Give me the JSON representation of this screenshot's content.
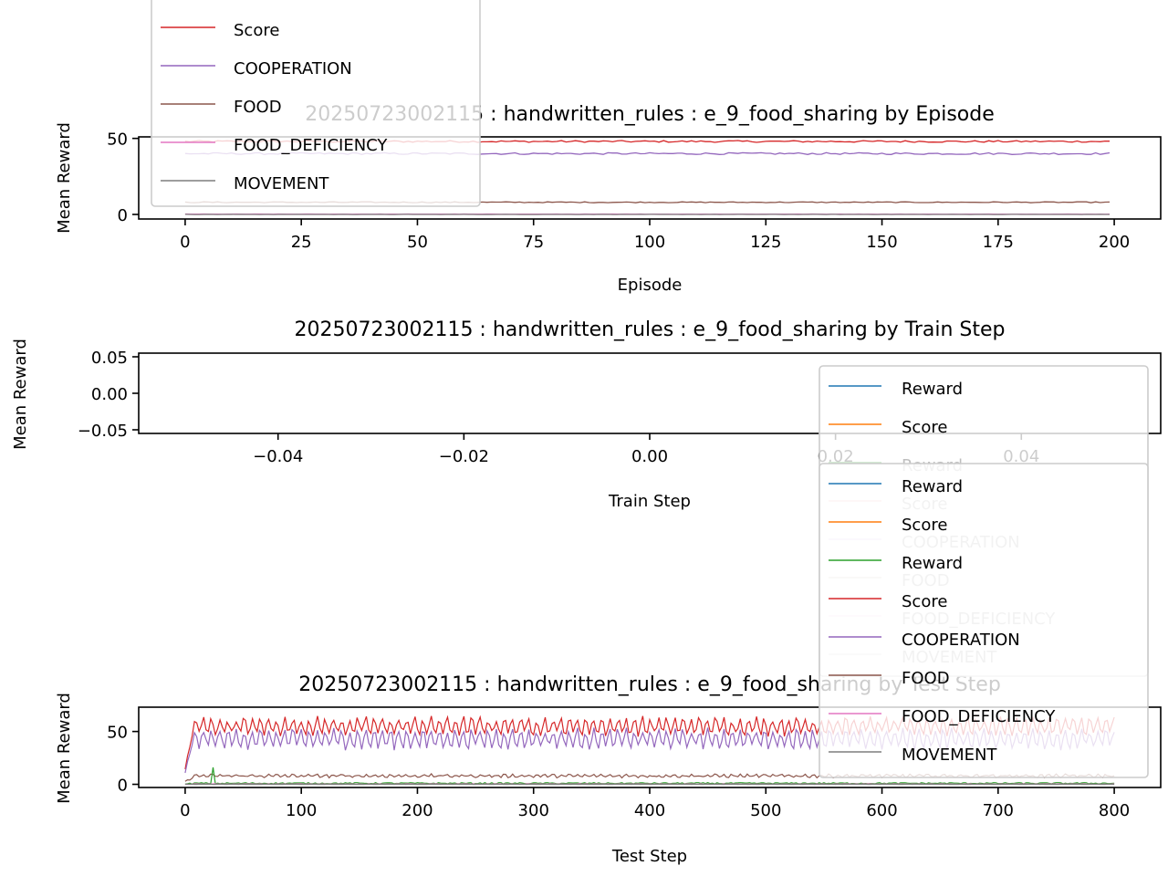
{
  "chart_data": [
    {
      "type": "line",
      "title": "20250723002115 : handwritten_rules : e_9_food_sharing by Episode",
      "xlabel": "Episode",
      "ylabel": "Mean Reward",
      "xlim": [
        -10,
        210
      ],
      "ylim": [
        -3,
        51
      ],
      "xticks": [
        "0",
        "25",
        "50",
        "75",
        "100",
        "125",
        "150",
        "175",
        "200"
      ],
      "xtick_values": [
        0,
        25,
        50,
        75,
        100,
        125,
        150,
        175,
        200
      ],
      "yticks": [
        "0",
        "50"
      ],
      "ytick_values": [
        0,
        50
      ],
      "legend": {
        "placement": "upper-left (overflowing top)",
        "entries": [
          "Score",
          "COOPERATION",
          "FOOD",
          "FOOD_DEFICIENCY",
          "MOVEMENT"
        ]
      },
      "series": [
        {
          "name": "Score",
          "color": "#d62728",
          "mean": 48,
          "noise": 0.6,
          "x_max": 199
        },
        {
          "name": "COOPERATION",
          "color": "#9467bd",
          "mean": 40,
          "noise": 0.6,
          "x_max": 199
        },
        {
          "name": "FOOD",
          "color": "#8c564b",
          "mean": 8,
          "noise": 0.3,
          "x_max": 199
        },
        {
          "name": "FOOD_DEFICIENCY",
          "color": "#e377c2",
          "mean": 0.2,
          "noise": 0.1,
          "x_max": 199
        },
        {
          "name": "MOVEMENT",
          "color": "#7f7f7f",
          "mean": 0,
          "noise": 0.05,
          "x_max": 199
        }
      ]
    },
    {
      "type": "line",
      "title": "20250723002115 : handwritten_rules : e_9_food_sharing by Train Step",
      "xlabel": "Train Step",
      "ylabel": "Mean Reward",
      "xlim": [
        -0.055,
        0.055
      ],
      "ylim": [
        -0.055,
        0.055
      ],
      "xticks": [
        "−0.04",
        "−0.02",
        "0.00",
        "0.02",
        "0.04"
      ],
      "xtick_values": [
        -0.04,
        -0.02,
        0.0,
        0.02,
        0.04
      ],
      "yticks": [
        "0.05",
        "0.00",
        "−0.05"
      ],
      "ytick_values": [
        0.05,
        0.0,
        -0.05
      ],
      "legend": {
        "placement": "lower-right (overflowing below)",
        "entries": [
          "Reward",
          "Score",
          "Reward",
          "Score",
          "COOPERATION",
          "FOOD",
          "FOOD_DEFICIENCY",
          "MOVEMENT"
        ]
      },
      "series": []
    },
    {
      "type": "line",
      "title": "20250723002115 : handwritten_rules : e_9_food_sharing by Test Step",
      "xlabel": "Test Step",
      "ylabel": "Mean Reward",
      "xlim": [
        -40,
        840
      ],
      "ylim": [
        -3,
        73
      ],
      "xticks": [
        "0",
        "100",
        "200",
        "300",
        "400",
        "500",
        "600",
        "700",
        "800"
      ],
      "xtick_values": [
        0,
        100,
        200,
        300,
        400,
        500,
        600,
        700,
        800
      ],
      "yticks": [
        "0",
        "50"
      ],
      "ytick_values": [
        0,
        50
      ],
      "legend": {
        "placement": "right (overlapping)",
        "entries": [
          "Reward",
          "Score",
          "Reward",
          "Score",
          "COOPERATION",
          "FOOD",
          "FOOD_DEFICIENCY",
          "MOVEMENT"
        ]
      },
      "series": [
        {
          "name": "Score",
          "color": "#d62728",
          "start": 15,
          "mean": 55,
          "amp": 7,
          "period": 7,
          "noise": 3,
          "x_max": 800
        },
        {
          "name": "COOPERATION",
          "color": "#9467bd",
          "start": 12,
          "mean": 43,
          "amp": 8,
          "period": 7,
          "noise": 3,
          "x_max": 800
        },
        {
          "name": "FOOD",
          "color": "#8c564b",
          "start": 2,
          "mean": 8,
          "amp": 1,
          "period": 7,
          "noise": 1,
          "x_max": 800
        },
        {
          "name": "Reward",
          "color": "#2ca02c",
          "start": 0,
          "mean": 1,
          "amp": 0,
          "period": 7,
          "noise": 0.6,
          "spike_x": 24,
          "spike_y": 16,
          "x_max": 800
        },
        {
          "name": "FOOD_DEFICIENCY",
          "color": "#e377c2",
          "start": 0,
          "mean": 0.3,
          "amp": 0,
          "period": 7,
          "noise": 0.2,
          "x_max": 800
        },
        {
          "name": "MOVEMENT",
          "color": "#7f7f7f",
          "start": 0,
          "mean": 0,
          "amp": 0,
          "period": 7,
          "noise": 0.05,
          "x_max": 800
        }
      ]
    }
  ],
  "legend_colors": {
    "Reward": "#1f77b4",
    "Score": "#ff7f0e",
    "Reward2": "#2ca02c",
    "Score2": "#d62728",
    "COOPERATION": "#9467bd",
    "FOOD": "#8c564b",
    "FOOD_DEFICIENCY": "#e377c2",
    "MOVEMENT": "#7f7f7f"
  }
}
